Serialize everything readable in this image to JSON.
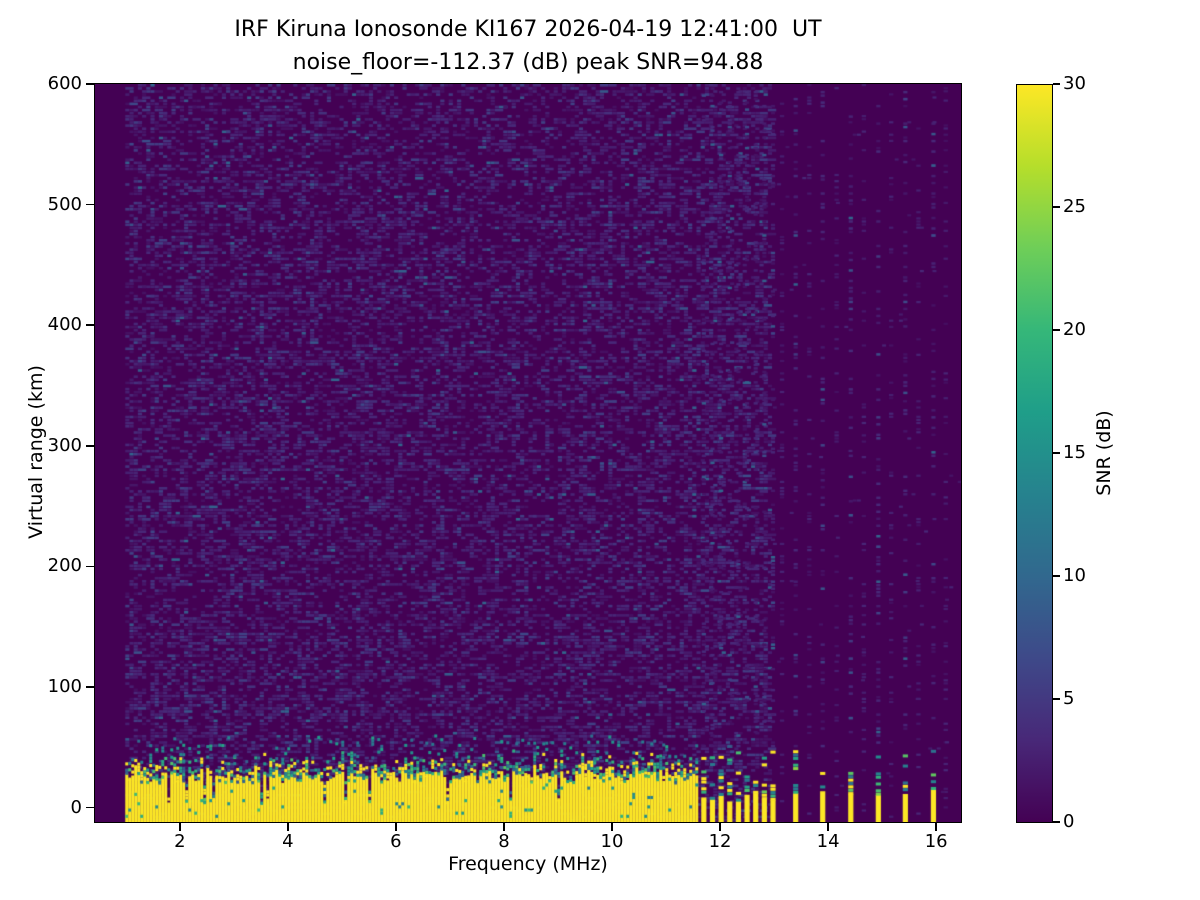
{
  "title": {
    "line1": "IRF Kiruna Ionosonde KI167 2026-04-19 12:41:00  UT",
    "line2": "noise_floor=-112.37 (dB) peak SNR=94.88"
  },
  "chart_data": {
    "type": "heatmap",
    "title": "IRF Kiruna Ionosonde KI167 2026-04-19 12:41:00  UT",
    "subtitle": "noise_floor=-112.37 (dB) peak SNR=94.88",
    "station": "IRF Kiruna Ionosonde KI167",
    "timestamp_ut": "2026-04-19 12:41:00",
    "noise_floor_db": -112.37,
    "peak_snr_db": 94.88,
    "xlabel": "Frequency (MHz)",
    "ylabel": "Virtual range (km)",
    "colorbar_label": "SNR (dB)",
    "xlim": [
      0.43,
      16.46
    ],
    "ylim": [
      -12,
      600
    ],
    "clim": [
      0,
      30
    ],
    "x_ticks": [
      2,
      4,
      6,
      8,
      10,
      12,
      14,
      16
    ],
    "y_ticks": [
      0,
      100,
      200,
      300,
      400,
      500,
      600
    ],
    "colorbar_ticks": [
      0,
      5,
      10,
      15,
      20,
      25,
      30
    ],
    "grid": false,
    "colormap": "viridis",
    "colormap_stops": [
      [
        0.0,
        "#440154"
      ],
      [
        0.111,
        "#482878"
      ],
      [
        0.222,
        "#3e4989"
      ],
      [
        0.333,
        "#31688e"
      ],
      [
        0.444,
        "#26828e"
      ],
      [
        0.556,
        "#1f9e89"
      ],
      [
        0.667,
        "#35b779"
      ],
      [
        0.778,
        "#6ece58"
      ],
      [
        0.889,
        "#b5de2b"
      ],
      [
        1.0,
        "#fde725"
      ]
    ],
    "features": {
      "quiet_band_mhz": [
        0.43,
        0.99
      ],
      "ground_clutter": {
        "freq_mhz": [
          0.99,
          11.58
        ],
        "range_km": [
          -12,
          32
        ],
        "snr_db": 30,
        "transition_top_km": 48
      },
      "clutter_stripe_freqs_mhz": [
        11.7,
        11.86,
        12.02,
        12.18,
        12.34,
        12.5,
        12.66,
        12.82,
        12.98
      ],
      "isolated_stripe_freqs_mhz": [
        13.4,
        13.9,
        14.42,
        14.93,
        15.43,
        15.95
      ],
      "rfi_columns": {
        "start_mhz": 13.15,
        "spacing_mhz": 0.2525,
        "weak_strong_alternating": true
      },
      "background_noise": {
        "snr_db_range": [
          0,
          8
        ],
        "dense_below_mhz": 12.9
      }
    },
    "render_seed": 42
  }
}
